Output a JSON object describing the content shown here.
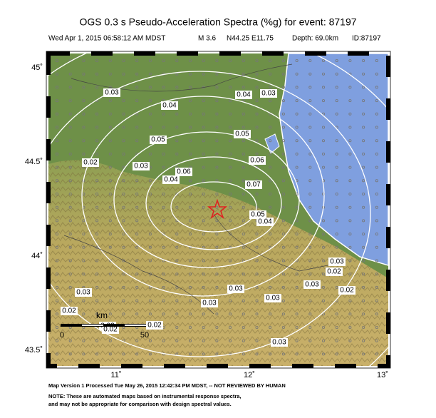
{
  "header": {
    "title": "OGS 0.3 s Pseudo-Acceleration Spectra (%g) for event: 87197",
    "subtitle": [
      "Wed Apr  1, 2015 06:58:12 AM MDST",
      "M 3.6",
      "N44.25 E11.75",
      "Depth: 69.0km",
      "ID:87197"
    ]
  },
  "map": {
    "lat_ticks": [
      {
        "value": 45,
        "label": "45˚"
      },
      {
        "value": 44.5,
        "label": "44.5˚"
      },
      {
        "value": 44,
        "label": "44˚"
      },
      {
        "value": 43.5,
        "label": "43.5˚"
      }
    ],
    "lon_ticks": [
      {
        "value": 11,
        "label": "11˚"
      },
      {
        "value": 12,
        "label": "12˚"
      },
      {
        "value": 13,
        "label": "13˚"
      }
    ],
    "contour_labels": [
      "0.03",
      "0.04",
      "0.04",
      "0.03",
      "0.05",
      "0.05",
      "0.06",
      "0.02",
      "0.03",
      "0.06",
      "0.04",
      "0.07",
      "0.05",
      "0.04",
      "0.03",
      "0.02",
      "0.03",
      "0.02",
      "0.03",
      "0.03",
      "0.03",
      "0.03",
      "0.02",
      "0.03",
      "0.02",
      "0.02",
      "0.03"
    ],
    "scale_bar": {
      "unit": "km",
      "labels": [
        "0",
        "50"
      ]
    }
  },
  "footer": [
    "Map Version 1 Processed Tue May 26, 2015 12:42:34 PM MDST, -- NOT REVIEWED BY HUMAN",
    "NOTE: These are automated maps based on instrumental response spectra,",
    "and may not be appropriate for comparison with design spectral values."
  ]
}
